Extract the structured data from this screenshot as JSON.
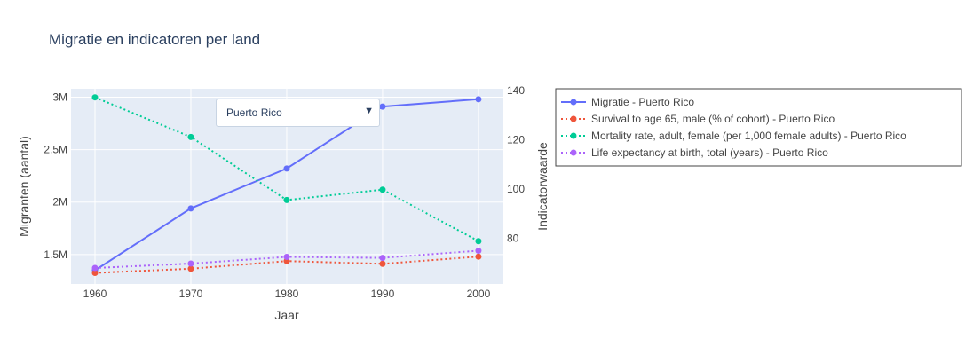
{
  "chart_data": {
    "type": "line",
    "title": "Migratie en indicatoren per land",
    "xlabel": "Jaar",
    "ylabel_left": "Migranten (aantal)",
    "ylabel_right": "Indicatorwaarde",
    "x": [
      1960,
      1970,
      1980,
      1990,
      2000
    ],
    "x_ticks": [
      "1960",
      "1970",
      "1980",
      "1990",
      "2000"
    ],
    "xlim": [
      1957.5,
      2002.6
    ],
    "ylim_left": [
      1220000,
      3080000
    ],
    "y_ticks_left": [
      {
        "v": 1500000,
        "label": "1.5M"
      },
      {
        "v": 2000000,
        "label": "2M"
      },
      {
        "v": 2500000,
        "label": "2.5M"
      },
      {
        "v": 3000000,
        "label": "3M"
      }
    ],
    "ylim_right": [
      61.5,
      140.8
    ],
    "y_ticks_right": [
      {
        "v": 80,
        "label": "80"
      },
      {
        "v": 100,
        "label": "100"
      },
      {
        "v": 120,
        "label": "120"
      },
      {
        "v": 140,
        "label": "140"
      }
    ],
    "grid": true,
    "legend_placement": "right",
    "series": [
      {
        "name": "Migratie - Puerto Rico",
        "axis": "left",
        "dash": "solid",
        "color": "#636efa",
        "values": [
          1350000,
          1940000,
          2320000,
          2910000,
          2980000
        ]
      },
      {
        "name": "Survival to age 65, male (% of cohort) - Puerto Rico",
        "axis": "right",
        "dash": "dot",
        "color": "#ef553b",
        "values": [
          66.0,
          67.7,
          70.8,
          69.7,
          72.6
        ]
      },
      {
        "name": "Mortality rate, adult, female (per 1,000 female adults) - Puerto Rico",
        "axis": "right",
        "dash": "dot",
        "color": "#00cc96",
        "values": [
          137.3,
          121.2,
          95.6,
          99.8,
          78.9
        ]
      },
      {
        "name": "Life expectancy at birth, total (years) - Puerto Rico",
        "axis": "right",
        "dash": "dot",
        "color": "#ab63fa",
        "values": [
          68.0,
          69.8,
          72.5,
          72.1,
          75.0
        ]
      }
    ],
    "colors": {
      "plot_bg": "#e5ecf6",
      "grid": "#ffffff",
      "text": "#444444",
      "title": "#2a3f5f"
    }
  },
  "dropdown": {
    "selected": "Puerto Rico",
    "arrow": "▼"
  }
}
